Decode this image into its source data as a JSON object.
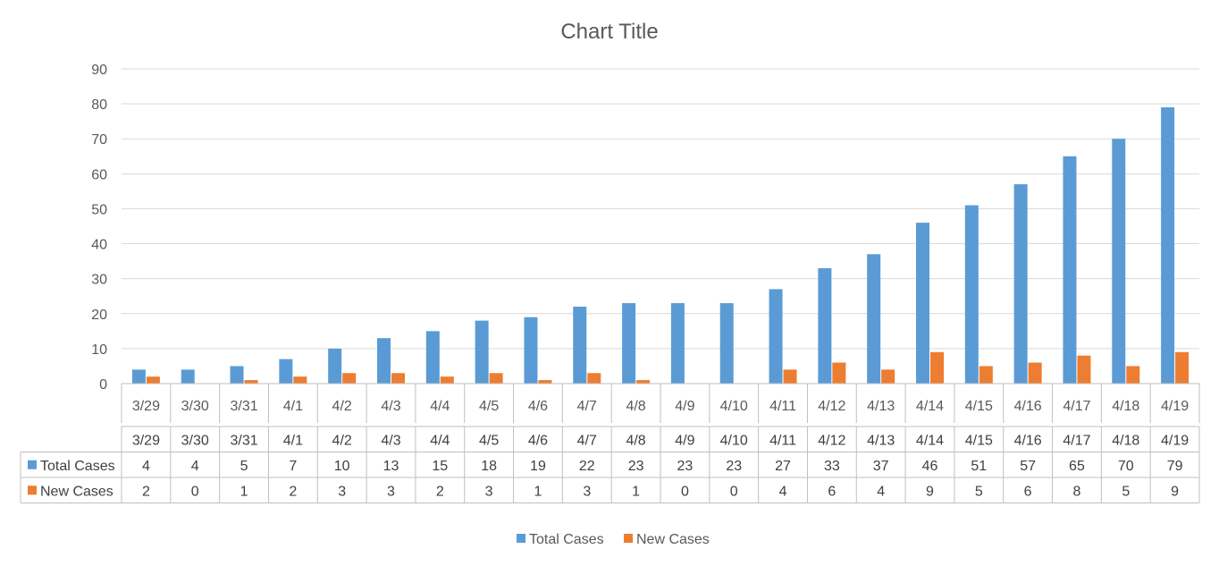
{
  "chart_data": {
    "type": "bar",
    "title": "Chart Title",
    "categories": [
      "3/29",
      "3/30",
      "3/31",
      "4/1",
      "4/2",
      "4/3",
      "4/4",
      "4/5",
      "4/6",
      "4/7",
      "4/8",
      "4/9",
      "4/10",
      "4/11",
      "4/12",
      "4/13",
      "4/14",
      "4/15",
      "4/16",
      "4/17",
      "4/18",
      "4/19"
    ],
    "series": [
      {
        "name": "Total Cases",
        "color": "#5B9BD5",
        "values": [
          4,
          4,
          5,
          7,
          10,
          13,
          15,
          18,
          19,
          22,
          23,
          23,
          23,
          27,
          33,
          37,
          46,
          51,
          57,
          65,
          70,
          79
        ]
      },
      {
        "name": "New Cases",
        "color": "#ED7D31",
        "values": [
          2,
          0,
          1,
          2,
          3,
          3,
          2,
          3,
          1,
          3,
          1,
          0,
          0,
          4,
          6,
          4,
          9,
          5,
          6,
          8,
          5,
          9
        ]
      }
    ],
    "ylim": [
      0,
      90
    ],
    "yticks": [
      0,
      10,
      20,
      30,
      40,
      50,
      60,
      70,
      80,
      90
    ],
    "grid": true,
    "legend": "bottom",
    "data_table": true
  }
}
